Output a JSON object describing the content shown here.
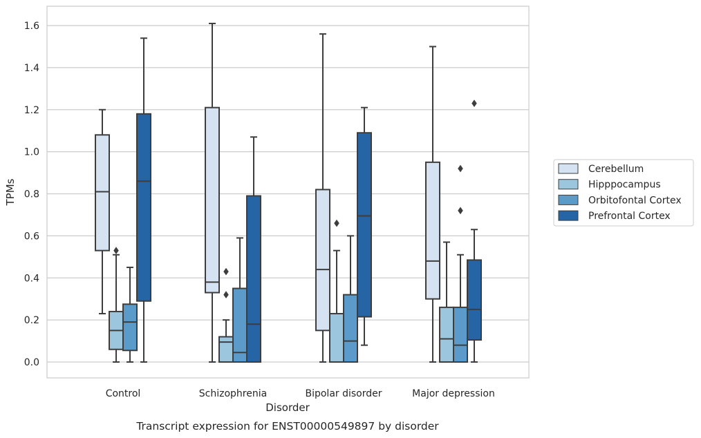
{
  "chart_data": {
    "type": "box",
    "title": "",
    "caption": "Transcript expression for ENST00000549897 by disorder",
    "xlabel": "Disorder",
    "ylabel": "TPMs",
    "ylim": [
      -0.08,
      1.69
    ],
    "yticks": [
      "0.0",
      "0.2",
      "0.4",
      "0.6",
      "0.8",
      "1.0",
      "1.2",
      "1.4",
      "1.6"
    ],
    "grid": "horizontal",
    "legend_position": "right",
    "categories": [
      "Control",
      "Schizophrenia",
      "Bipolar disorder",
      "Major depression"
    ],
    "series": [
      {
        "name": "Cerebellum",
        "color": "#d4e2f1",
        "boxes": [
          {
            "q1": 0.53,
            "median": 0.81,
            "q3": 1.08,
            "whisker_low": 0.23,
            "whisker_high": 1.2,
            "outliers": []
          },
          {
            "q1": 0.33,
            "median": 0.38,
            "q3": 1.21,
            "whisker_low": 0.0,
            "whisker_high": 1.61,
            "outliers": []
          },
          {
            "q1": 0.15,
            "median": 0.44,
            "q3": 0.82,
            "whisker_low": 0.0,
            "whisker_high": 1.56,
            "outliers": []
          },
          {
            "q1": 0.3,
            "median": 0.48,
            "q3": 0.95,
            "whisker_low": 0.0,
            "whisker_high": 1.5,
            "outliers": []
          }
        ]
      },
      {
        "name": "Hipppocampus",
        "color": "#9cc5de",
        "boxes": [
          {
            "q1": 0.06,
            "median": 0.15,
            "q3": 0.24,
            "whisker_low": 0.0,
            "whisker_high": 0.51,
            "outliers": [
              0.53
            ]
          },
          {
            "q1": 0.0,
            "median": 0.095,
            "q3": 0.12,
            "whisker_low": 0.0,
            "whisker_high": 0.2,
            "outliers": [
              0.32,
              0.43
            ]
          },
          {
            "q1": 0.0,
            "median": 0.0,
            "q3": 0.23,
            "whisker_low": 0.0,
            "whisker_high": 0.53,
            "outliers": [
              0.66
            ]
          },
          {
            "q1": 0.0,
            "median": 0.11,
            "q3": 0.26,
            "whisker_low": 0.0,
            "whisker_high": 0.57,
            "outliers": []
          }
        ]
      },
      {
        "name": "Orbitofontal Cortex",
        "color": "#5b9bc9",
        "boxes": [
          {
            "q1": 0.055,
            "median": 0.19,
            "q3": 0.275,
            "whisker_low": 0.0,
            "whisker_high": 0.45,
            "outliers": []
          },
          {
            "q1": 0.0,
            "median": 0.045,
            "q3": 0.35,
            "whisker_low": 0.0,
            "whisker_high": 0.59,
            "outliers": []
          },
          {
            "q1": 0.0,
            "median": 0.1,
            "q3": 0.32,
            "whisker_low": 0.0,
            "whisker_high": 0.6,
            "outliers": []
          },
          {
            "q1": 0.0,
            "median": 0.08,
            "q3": 0.26,
            "whisker_low": 0.0,
            "whisker_high": 0.51,
            "outliers": [
              0.72,
              0.92
            ]
          }
        ]
      },
      {
        "name": "Prefrontal Cortex",
        "color": "#2565a6",
        "boxes": [
          {
            "q1": 0.29,
            "median": 0.86,
            "q3": 1.18,
            "whisker_low": 0.0,
            "whisker_high": 1.54,
            "outliers": []
          },
          {
            "q1": 0.0,
            "median": 0.18,
            "q3": 0.79,
            "whisker_low": 0.0,
            "whisker_high": 1.07,
            "outliers": []
          },
          {
            "q1": 0.215,
            "median": 0.695,
            "q3": 1.09,
            "whisker_low": 0.08,
            "whisker_high": 1.21,
            "outliers": []
          },
          {
            "q1": 0.105,
            "median": 0.25,
            "q3": 0.485,
            "whisker_low": 0.0,
            "whisker_high": 0.63,
            "outliers": [
              1.23
            ]
          }
        ]
      }
    ]
  }
}
